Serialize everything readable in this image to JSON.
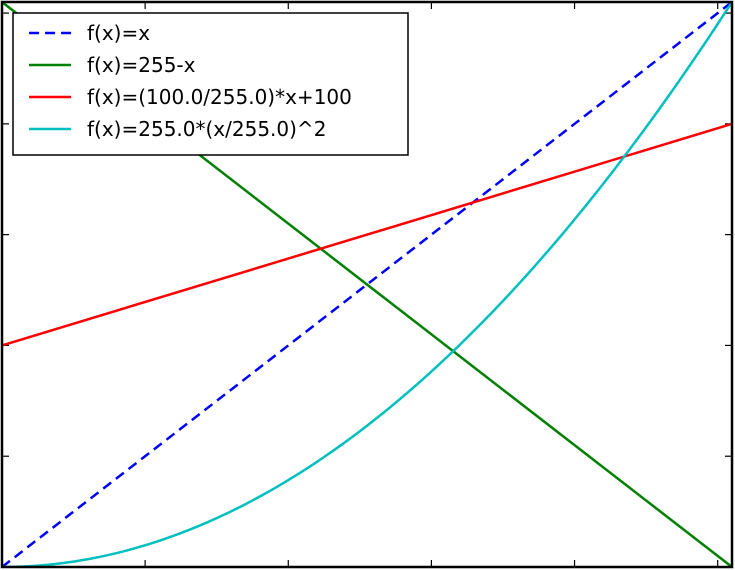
{
  "chart_data": {
    "type": "line",
    "title": "",
    "xlabel": "",
    "ylabel": "",
    "xlim": [
      0,
      255
    ],
    "ylim": [
      0,
      255
    ],
    "xticks": [
      0,
      50,
      100,
      150,
      200,
      250
    ],
    "yticks": [
      0,
      50,
      100,
      150,
      200,
      250
    ],
    "grid": false,
    "legend_position": "top-left",
    "series": [
      {
        "name": "f(x)=x",
        "color": "#0000ff",
        "style": "dashed",
        "x": [
          0,
          255
        ],
        "y": [
          0,
          255
        ]
      },
      {
        "name": "f(x)=255-x",
        "color": "#008000",
        "style": "solid",
        "x": [
          0,
          255
        ],
        "y": [
          255,
          0
        ]
      },
      {
        "name": "f(x)=(100.0/255.0)*x+100",
        "color": "#ff0000",
        "style": "solid",
        "x": [
          0,
          255
        ],
        "y": [
          100,
          200
        ]
      },
      {
        "name": "f(x)=255.0*(x/255.0)^2",
        "color": "#00bfbf",
        "style": "solid",
        "x": [
          0,
          25,
          50,
          75,
          100,
          125,
          150,
          175,
          200,
          225,
          255
        ],
        "y": [
          0,
          2.45,
          9.8,
          22.06,
          39.22,
          61.27,
          88.24,
          120.1,
          156.86,
          198.53,
          255
        ]
      }
    ]
  }
}
